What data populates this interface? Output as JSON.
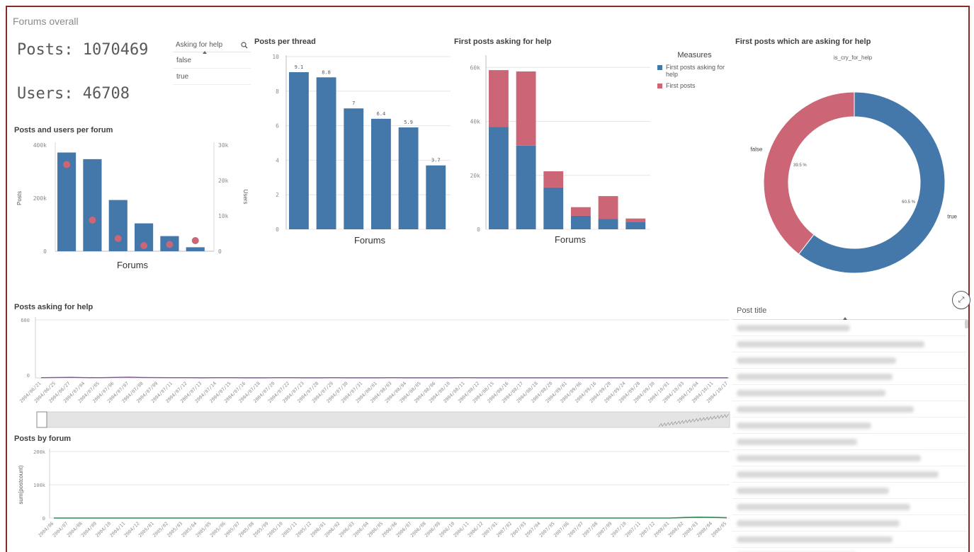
{
  "sheet": {
    "title": "Forums overall"
  },
  "kpis": {
    "posts": "Posts: 1070469",
    "users": "Users: 46708"
  },
  "filter": {
    "label": "Asking for help",
    "options": [
      "false",
      "true"
    ]
  },
  "panels": {
    "posts_users": "Posts and users per forum",
    "per_thread": "Posts per thread",
    "first_posts": "First posts asking for help",
    "donut": "First posts which are asking for help",
    "help_time": "Posts asking for help",
    "by_forum": "Posts by forum"
  },
  "legend": {
    "title": "Measures",
    "items": [
      {
        "label": "First posts asking for help",
        "color": "#4477aa"
      },
      {
        "label": "First posts",
        "color": "#cc6677"
      }
    ]
  },
  "table": {
    "header": "Post title"
  },
  "colors": {
    "blue": "#4477aa",
    "red": "#cc6677",
    "grid": "#e6e6e6",
    "axis": "#8c8c8c"
  },
  "chart_data": [
    {
      "type": "bar",
      "title": "Posts and users per forum",
      "xlabel": "Forums",
      "ylabel": "Posts",
      "y2label": "Users",
      "ylim": [
        0,
        400000
      ],
      "y2lim": [
        0,
        30000
      ],
      "yticks": [
        "0",
        "200k",
        "400k"
      ],
      "y2ticks": [
        "0",
        "10k",
        "20k",
        "30k"
      ],
      "series": [
        {
          "name": "Posts",
          "type": "bar",
          "values": [
            372000,
            347000,
            193000,
            105000,
            57000,
            15000
          ]
        },
        {
          "name": "Users",
          "type": "scatter",
          "values": [
            24500,
            8800,
            3600,
            1600,
            1900,
            3000
          ]
        }
      ]
    },
    {
      "type": "bar",
      "title": "Posts per thread",
      "xlabel": "Forums",
      "ylim": [
        0,
        10
      ],
      "yticks": [
        "0",
        "2",
        "4",
        "6",
        "8",
        "10"
      ],
      "values": [
        9.1,
        8.8,
        7,
        6.4,
        5.9,
        3.7
      ],
      "labels": [
        "9.1",
        "8.8",
        "7",
        "6.4",
        "5.9",
        "3.7"
      ]
    },
    {
      "type": "bar",
      "title": "First posts asking for help",
      "xlabel": "Forums",
      "ylim": [
        0,
        64000
      ],
      "yticks": [
        "0",
        "20k",
        "40k",
        "60k"
      ],
      "stacked": true,
      "series": [
        {
          "name": "First posts asking for help",
          "values": [
            38000,
            31000,
            15500,
            5000,
            3800,
            2800
          ]
        },
        {
          "name": "First posts",
          "values": [
            21000,
            27500,
            6000,
            3200,
            8500,
            1200
          ]
        }
      ]
    },
    {
      "type": "pie",
      "title": "First posts which are asking for help",
      "subtitle": "is_cry_for_help",
      "donut": true,
      "slices": [
        {
          "label": "true",
          "value": 60.5,
          "text": "60.5 %"
        },
        {
          "label": "false",
          "value": 39.5,
          "text": "39.5 %"
        }
      ]
    },
    {
      "type": "line",
      "title": "Posts asking for help",
      "ylim": [
        0,
        600
      ],
      "yticks": [
        "0",
        "600"
      ],
      "x": [
        "2004/06/21",
        "2004/06/25",
        "2004/06/27",
        "2004/07/04",
        "2004/07/05",
        "2004/07/06",
        "2004/07/07",
        "2004/07/08",
        "2004/07/09",
        "2004/07/11",
        "2004/07/12",
        "2004/07/13",
        "2004/07/14",
        "2004/07/15",
        "2004/07/16",
        "2004/07/18",
        "2004/07/20",
        "2004/07/22",
        "2004/07/23",
        "2004/07/28",
        "2004/07/29",
        "2004/07/30",
        "2004/07/31",
        "2004/08/01",
        "2004/08/03",
        "2004/08/04",
        "2004/08/05",
        "2004/08/06",
        "2004/08/10",
        "2004/08/11",
        "2004/08/12",
        "2004/08/15",
        "2004/08/16",
        "2004/08/17",
        "2004/08/18",
        "2004/08/20",
        "2004/09/01",
        "2004/09/06",
        "2004/09/16",
        "2004/09/20",
        "2004/09/24",
        "2004/09/28",
        "2004/09/30",
        "2004/10/01",
        "2004/10/03",
        "2004/10/04",
        "2004/10/11",
        "2004/10/17"
      ],
      "values": [
        2,
        4,
        6,
        3,
        2,
        5,
        8,
        4,
        3,
        2,
        2,
        1,
        2,
        2,
        1,
        1,
        2,
        2,
        1,
        1,
        2,
        1,
        1,
        1,
        2,
        1,
        1,
        1,
        1,
        2,
        1,
        1,
        1,
        1,
        1,
        1,
        1,
        1,
        1,
        1,
        1,
        1,
        1,
        1,
        1,
        1,
        1,
        1
      ]
    },
    {
      "type": "line",
      "title": "Posts by forum",
      "ylabel": "sum(postcount)",
      "ylim": [
        0,
        200000
      ],
      "yticks": [
        "0",
        "100k",
        "200k"
      ],
      "x": [
        "2004/06",
        "2004/07",
        "2004/08",
        "2004/09",
        "2004/10",
        "2004/11",
        "2004/12",
        "2005/01",
        "2005/02",
        "2005/03",
        "2005/04",
        "2005/05",
        "2005/06",
        "2005/07",
        "2005/08",
        "2005/09",
        "2005/10",
        "2005/11",
        "2005/12",
        "2006/01",
        "2006/02",
        "2006/03",
        "2006/04",
        "2006/05",
        "2006/06",
        "2006/07",
        "2006/08",
        "2006/09",
        "2006/10",
        "2006/11",
        "2006/12",
        "2007/01",
        "2007/02",
        "2007/03",
        "2007/04",
        "2007/05",
        "2007/06",
        "2007/07",
        "2007/08",
        "2007/09",
        "2007/10",
        "2007/11",
        "2007/12",
        "2008/01",
        "2008/02",
        "2008/03",
        "2008/04",
        "2008/05"
      ],
      "values": [
        0,
        0,
        0,
        0,
        0,
        0,
        0,
        0,
        0,
        0,
        0,
        0,
        0,
        0,
        0,
        0,
        0,
        0,
        0,
        0,
        0,
        0,
        0,
        0,
        0,
        0,
        0,
        0,
        0,
        0,
        0,
        0,
        0,
        0,
        0,
        0,
        0,
        0,
        0,
        0,
        0,
        0,
        0,
        0,
        1500,
        2500,
        2000,
        1000
      ]
    }
  ]
}
